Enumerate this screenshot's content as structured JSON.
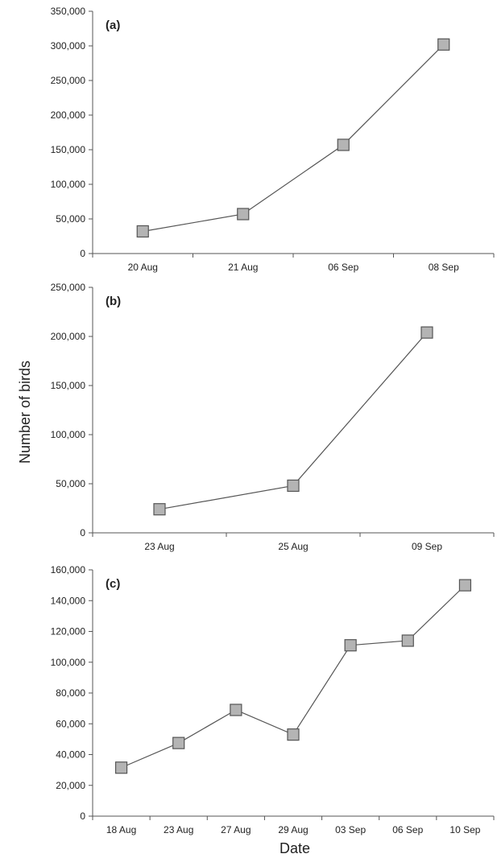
{
  "figure": {
    "ylabel": "Number of birds",
    "xlabel": "Date",
    "colors": {
      "line": "#555555",
      "marker_fill": "#b4b4b4",
      "marker_stroke": "#555555",
      "axis": "#555555"
    }
  },
  "chart_data": [
    {
      "type": "line",
      "panel_label": "(a)",
      "categories": [
        "20 Aug",
        "21 Aug",
        "06 Sep",
        "08 Sep"
      ],
      "values": [
        32000,
        57000,
        157000,
        302000
      ],
      "ylim": [
        0,
        350000
      ],
      "yticks": [
        0,
        50000,
        100000,
        150000,
        200000,
        250000,
        300000,
        350000
      ],
      "ytick_labels": [
        "0",
        "50,000",
        "100,000",
        "150,000",
        "200,000",
        "250,000",
        "300,000",
        "350,000"
      ],
      "marker": "square",
      "grid": false
    },
    {
      "type": "line",
      "panel_label": "(b)",
      "categories": [
        "23 Aug",
        "25 Aug",
        "09 Sep"
      ],
      "values": [
        24000,
        48000,
        204000
      ],
      "ylim": [
        0,
        250000
      ],
      "yticks": [
        0,
        50000,
        100000,
        150000,
        200000,
        250000
      ],
      "ytick_labels": [
        "0",
        "50,000",
        "100,000",
        "150,000",
        "200,000",
        "250,000"
      ],
      "marker": "square",
      "grid": false
    },
    {
      "type": "line",
      "panel_label": "(c)",
      "categories": [
        "18 Aug",
        "23 Aug",
        "27 Aug",
        "29 Aug",
        "03 Sep",
        "06 Sep",
        "10 Sep"
      ],
      "values": [
        31500,
        47500,
        69000,
        53000,
        111000,
        114000,
        150000
      ],
      "ylim": [
        0,
        160000
      ],
      "yticks": [
        0,
        20000,
        40000,
        60000,
        80000,
        100000,
        120000,
        140000,
        160000
      ],
      "ytick_labels": [
        "0",
        "20,000",
        "40,000",
        "60,000",
        "80,000",
        "100,000",
        "120,000",
        "140,000",
        "160,000"
      ],
      "marker": "square",
      "grid": false
    }
  ]
}
